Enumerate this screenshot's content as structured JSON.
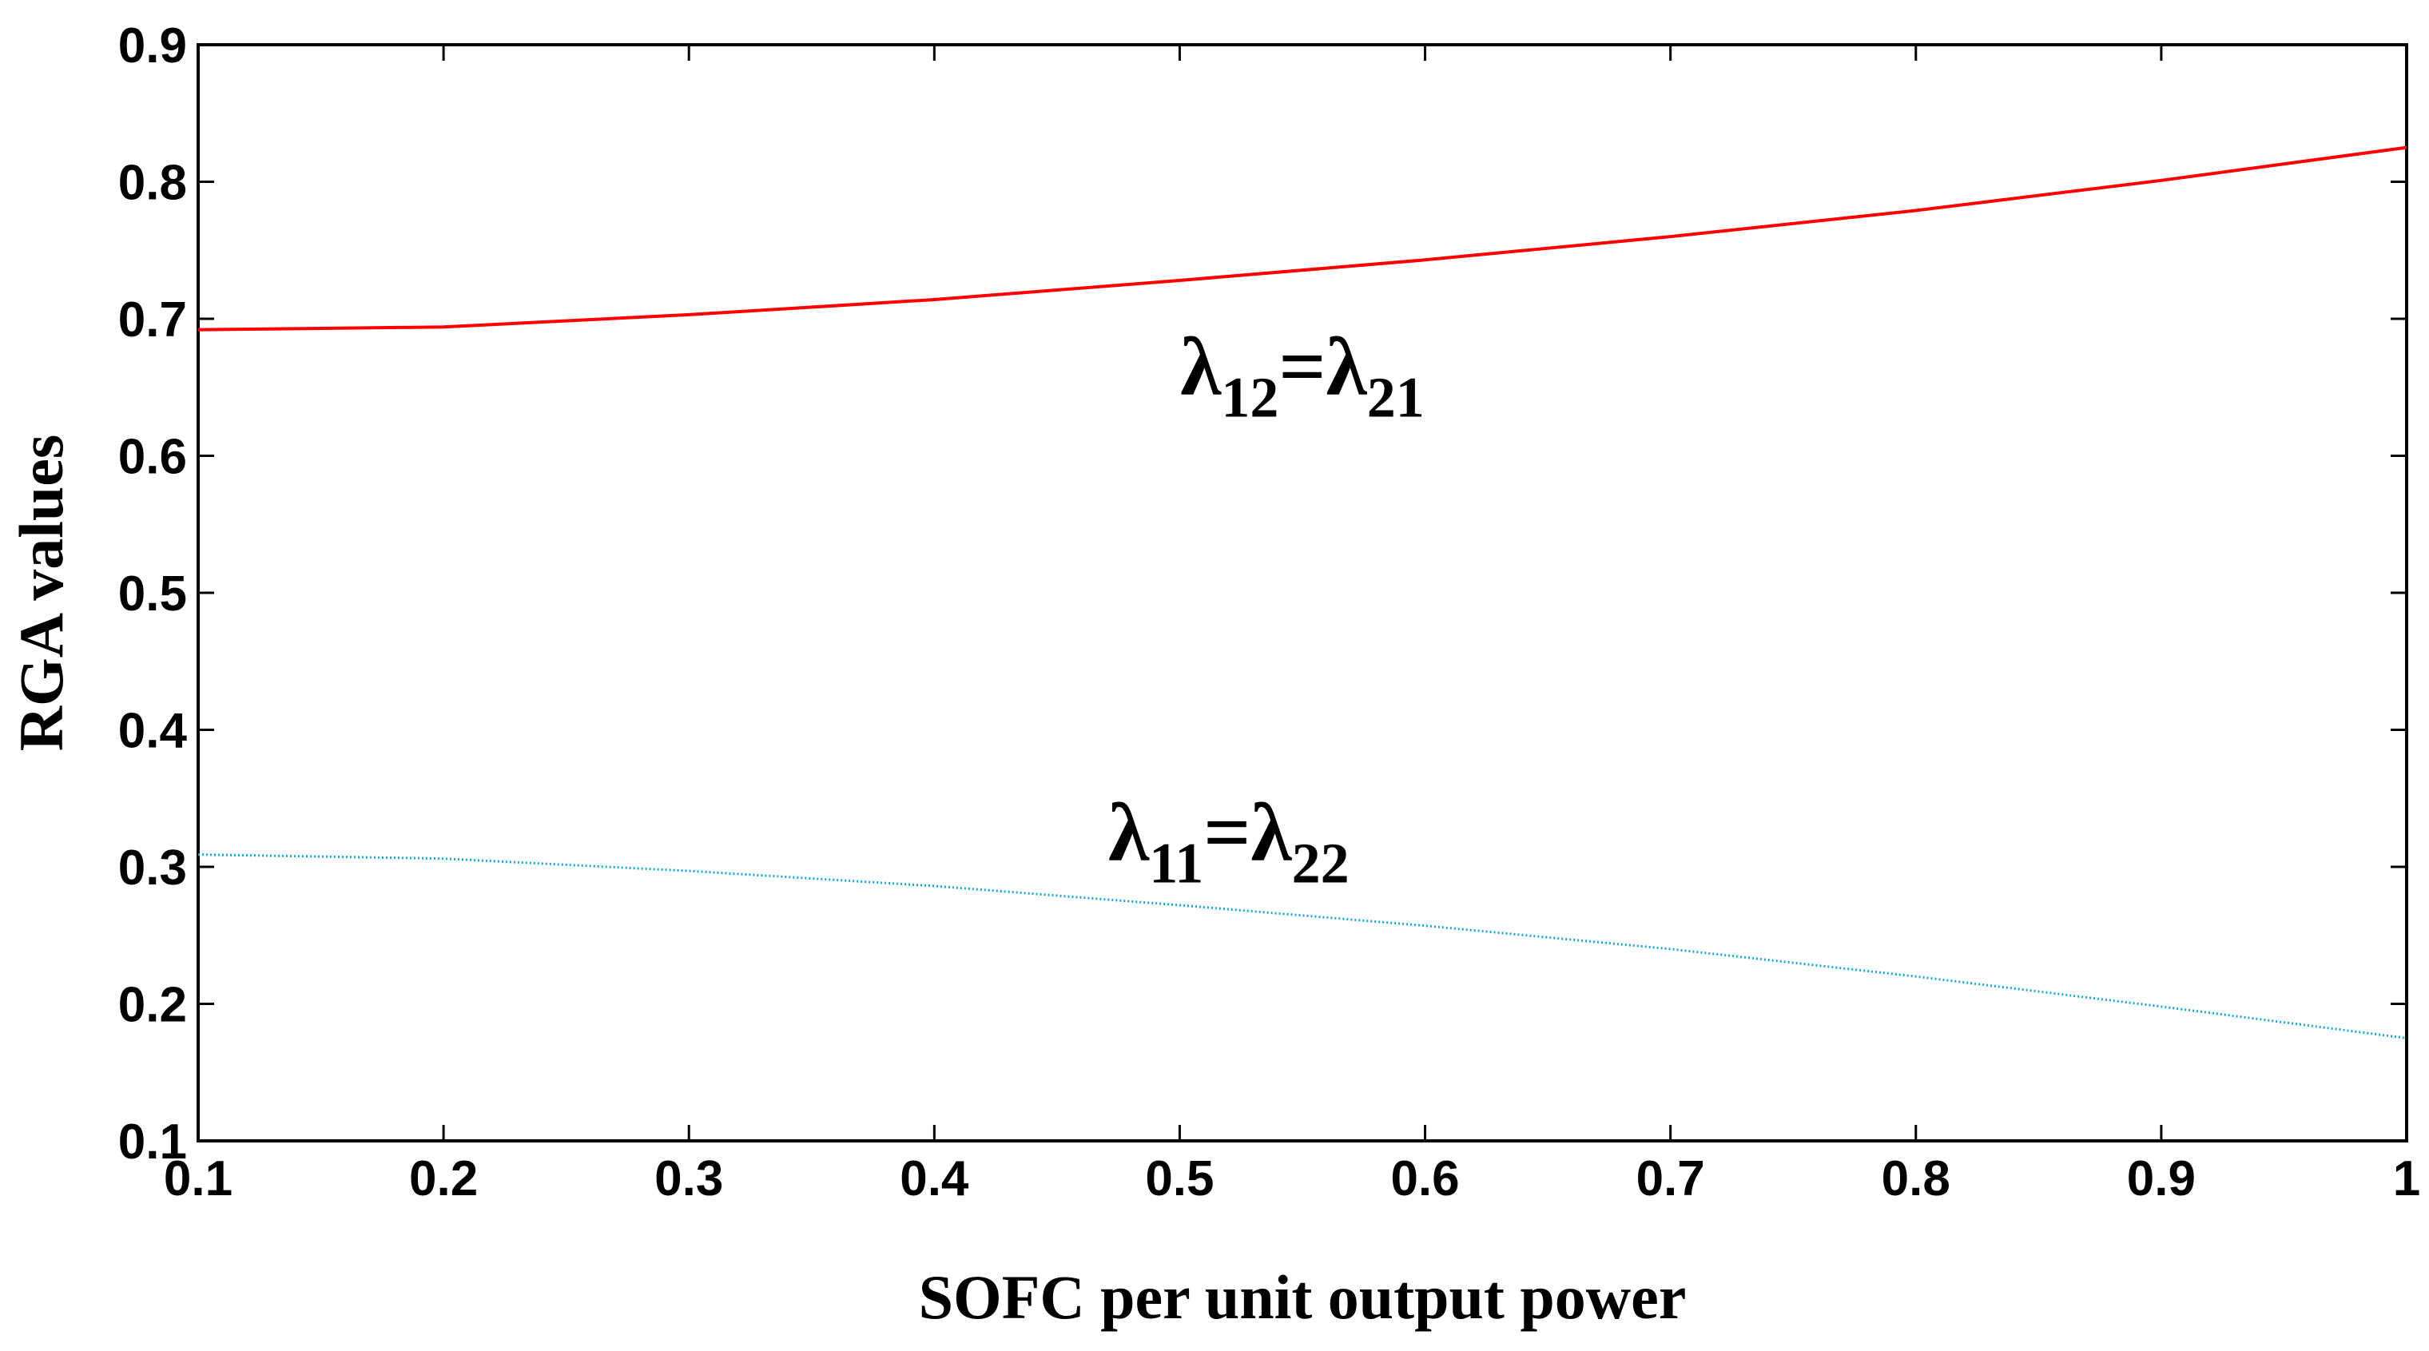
{
  "chart_data": {
    "type": "line",
    "title": "",
    "xlabel": "SOFC per unit output power",
    "ylabel": "RGA values",
    "xlim": [
      0.1,
      1
    ],
    "ylim": [
      0.1,
      0.9
    ],
    "xticks": [
      "0.1",
      "0.2",
      "0.3",
      "0.4",
      "0.5",
      "0.6",
      "0.7",
      "0.8",
      "0.9",
      "1"
    ],
    "yticks": [
      "0.1",
      "0.2",
      "0.3",
      "0.4",
      "0.5",
      "0.6",
      "0.7",
      "0.8",
      "0.9"
    ],
    "grid": false,
    "legend": "none",
    "series": [
      {
        "color": "#ff0000",
        "style": "solid",
        "x": [
          0.1,
          0.2,
          0.3,
          0.4,
          0.5,
          0.6,
          0.7,
          0.8,
          0.9,
          1.0
        ],
        "values": [
          0.692,
          0.694,
          0.703,
          0.714,
          0.728,
          0.743,
          0.76,
          0.779,
          0.801,
          0.825
        ]
      },
      {
        "color": "#1ba7d6",
        "style": "dotted",
        "x": [
          0.1,
          0.2,
          0.3,
          0.4,
          0.5,
          0.6,
          0.7,
          0.8,
          0.9,
          1.0
        ],
        "values": [
          0.309,
          0.306,
          0.297,
          0.286,
          0.272,
          0.257,
          0.24,
          0.22,
          0.198,
          0.175
        ]
      }
    ],
    "annotations": [
      {
        "main1": "λ",
        "sub1": "12",
        "eq": "=",
        "main2": "λ",
        "sub2": "21",
        "x": 0.55,
        "y": 0.645
      },
      {
        "main1": "λ",
        "sub1": "11",
        "eq": "=",
        "main2": "λ",
        "sub2": "22",
        "x": 0.52,
        "y": 0.305
      }
    ]
  }
}
